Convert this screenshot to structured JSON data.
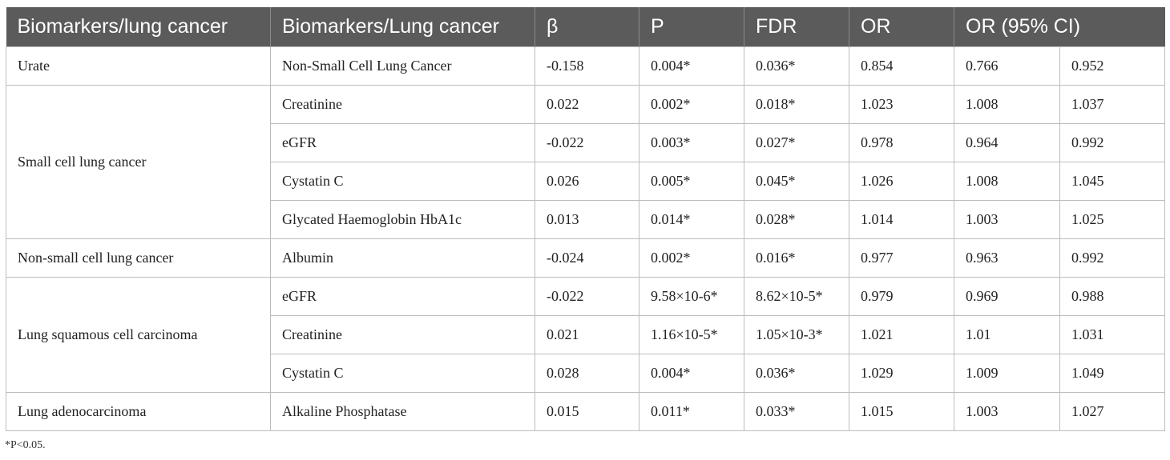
{
  "headers": [
    "Biomarkers/lung cancer",
    "Biomarkers/Lung cancer",
    "β",
    "P",
    "FDR",
    "OR",
    "OR (95% CI)"
  ],
  "groups": [
    {
      "cancer": "Urate",
      "rows": [
        {
          "biomarker": "Non-Small Cell Lung Cancer",
          "beta": "-0.158",
          "p": "0.004*",
          "fdr": "0.036*",
          "or": "0.854",
          "ci_low": "0.766",
          "ci_high": "0.952"
        }
      ]
    },
    {
      "cancer": "Small cell lung cancer",
      "rows": [
        {
          "biomarker": "Creatinine",
          "beta": "0.022",
          "p": "0.002*",
          "fdr": "0.018*",
          "or": "1.023",
          "ci_low": "1.008",
          "ci_high": "1.037"
        },
        {
          "biomarker": "eGFR",
          "beta": "-0.022",
          "p": "0.003*",
          "fdr": "0.027*",
          "or": "0.978",
          "ci_low": "0.964",
          "ci_high": "0.992"
        },
        {
          "biomarker": "Cystatin C",
          "beta": "0.026",
          "p": "0.005*",
          "fdr": "0.045*",
          "or": "1.026",
          "ci_low": "1.008",
          "ci_high": "1.045"
        },
        {
          "biomarker": "Glycated Haemoglobin HbA1c",
          "beta": "0.013",
          "p": "0.014*",
          "fdr": "0.028*",
          "or": "1.014",
          "ci_low": "1.003",
          "ci_high": "1.025"
        }
      ]
    },
    {
      "cancer": "Non-small cell lung cancer",
      "rows": [
        {
          "biomarker": "Albumin",
          "beta": "-0.024",
          "p": "0.002*",
          "fdr": "0.016*",
          "or": "0.977",
          "ci_low": "0.963",
          "ci_high": "0.992"
        }
      ]
    },
    {
      "cancer": "Lung squamous cell carcinoma",
      "rows": [
        {
          "biomarker": "eGFR",
          "beta": "-0.022",
          "p": "9.58×10-6*",
          "fdr": "8.62×10-5*",
          "or": "0.979",
          "ci_low": "0.969",
          "ci_high": "0.988"
        },
        {
          "biomarker": "Creatinine",
          "beta": "0.021",
          "p": "1.16×10-5*",
          "fdr": "1.05×10-3*",
          "or": "1.021",
          "ci_low": "1.01",
          "ci_high": "1.031"
        },
        {
          "biomarker": "Cystatin C",
          "beta": "0.028",
          "p": "0.004*",
          "fdr": "0.036*",
          "or": "1.029",
          "ci_low": "1.009",
          "ci_high": "1.049"
        }
      ]
    },
    {
      "cancer": "Lung adenocarcinoma",
      "rows": [
        {
          "biomarker": "Alkaline Phosphatase",
          "beta": "0.015",
          "p": "0.011*",
          "fdr": "0.033*",
          "or": "1.015",
          "ci_low": "1.003",
          "ci_high": "1.027"
        }
      ]
    }
  ],
  "footnote": "*P<0.05."
}
